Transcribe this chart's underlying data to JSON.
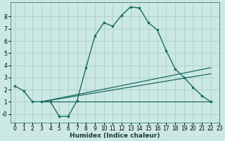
{
  "xlabel": "Humidex (Indice chaleur)",
  "background_color": "#cce8e4",
  "grid_color": "#aacfcb",
  "line_color": "#1a6b5e",
  "xlim": [
    -0.5,
    23
  ],
  "ylim": [
    -0.7,
    9.2
  ],
  "x_ticks": [
    0,
    1,
    2,
    3,
    4,
    5,
    6,
    7,
    8,
    9,
    10,
    11,
    12,
    13,
    14,
    15,
    16,
    17,
    18,
    19,
    20,
    21,
    22,
    23
  ],
  "y_ticks": [
    0,
    1,
    2,
    3,
    4,
    5,
    6,
    7,
    8
  ],
  "y_tick_labels": [
    "-0",
    "1",
    "2",
    "3",
    "4",
    "5",
    "6",
    "7",
    "8"
  ],
  "curve1_x": [
    0,
    1,
    2,
    3,
    4,
    5,
    6,
    7,
    8,
    9,
    10,
    11,
    12,
    13,
    14,
    15,
    16,
    17,
    18,
    19,
    20,
    21,
    22
  ],
  "curve1_y": [
    2.3,
    1.9,
    1.0,
    1.0,
    1.0,
    -0.2,
    -0.2,
    1.1,
    3.8,
    6.4,
    7.5,
    7.2,
    8.1,
    8.8,
    8.7,
    7.5,
    6.9,
    5.2,
    3.7,
    3.0,
    2.2,
    1.5,
    1.0
  ],
  "flat_line_x": [
    3,
    22
  ],
  "flat_line_y": [
    1.0,
    1.0
  ],
  "rise_line1_x": [
    3,
    22
  ],
  "rise_line1_y": [
    1.0,
    3.8
  ],
  "rise_line2_x": [
    3,
    22
  ],
  "rise_line2_y": [
    1.0,
    3.3
  ]
}
